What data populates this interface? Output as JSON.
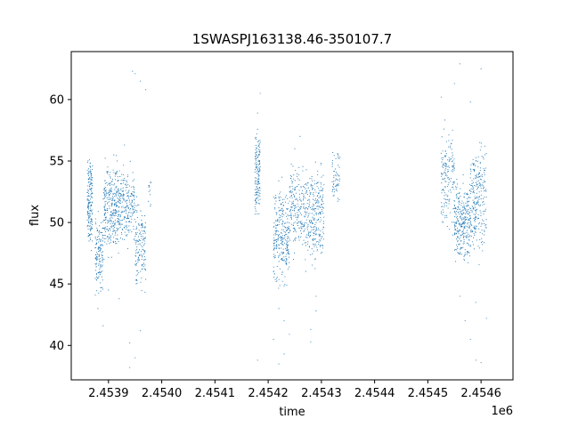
{
  "chart_data": {
    "type": "scatter",
    "title": "1SWASPJ163138.46-350107.7",
    "xlabel": "time",
    "ylabel": "flux",
    "x_offset_label": "1e6",
    "x_unit_multiplier": 1000000,
    "xlim": [
      2.45383,
      2.45466
    ],
    "ylim": [
      37.2,
      63.9
    ],
    "x_ticks": [
      2.4539,
      2.454,
      2.4541,
      2.4542,
      2.4543,
      2.4544,
      2.4545,
      2.4546
    ],
    "x_tick_labels": [
      "2.4539",
      "2.4540",
      "2.4541",
      "2.4542",
      "2.4543",
      "2.4544",
      "2.4545",
      "2.4546"
    ],
    "y_ticks": [
      40,
      45,
      50,
      55,
      60
    ],
    "y_tick_labels": [
      "40",
      "45",
      "50",
      "55",
      "60"
    ],
    "marker_color": "#1f77b4",
    "grid": false,
    "series": [
      {
        "clusters": [
          {
            "x": [
              2.45386,
              2.45387
            ],
            "y": [
              49.0,
              54.5
            ],
            "sd": 1.2,
            "n": 180
          },
          {
            "x": [
              2.453875,
              2.45389
            ],
            "y": [
              45.5,
              49.5
            ],
            "sd": 1.4,
            "n": 140
          },
          {
            "x": [
              2.45389,
              2.45392
            ],
            "y": [
              48.5,
              53.5
            ],
            "sd": 1.5,
            "n": 320
          },
          {
            "x": [
              2.45392,
              2.45395
            ],
            "y": [
              49.5,
              53.0
            ],
            "sd": 1.6,
            "n": 220
          },
          {
            "x": [
              2.45395,
              2.45397
            ],
            "y": [
              46.0,
              50.5
            ],
            "sd": 1.6,
            "n": 150
          },
          {
            "x": [
              2.453975,
              2.45398
            ],
            "y": [
              51.5,
              53.0
            ],
            "sd": 0.6,
            "n": 12
          },
          {
            "x": [
              2.454175,
              2.454185
            ],
            "y": [
              51.5,
              56.5
            ],
            "sd": 1.3,
            "n": 150
          },
          {
            "x": [
              2.45421,
              2.45424
            ],
            "y": [
              46.0,
              51.5
            ],
            "sd": 1.6,
            "n": 280
          },
          {
            "x": [
              2.45424,
              2.45427
            ],
            "y": [
              49.0,
              53.0
            ],
            "sd": 1.6,
            "n": 200
          },
          {
            "x": [
              2.45427,
              2.454305
            ],
            "y": [
              48.0,
              53.5
            ],
            "sd": 1.6,
            "n": 280
          },
          {
            "x": [
              2.45432,
              2.454335
            ],
            "y": [
              52.5,
              55.5
            ],
            "sd": 1.0,
            "n": 60
          },
          {
            "x": [
              2.454525,
              2.45455
            ],
            "y": [
              50.5,
              56.0
            ],
            "sd": 1.5,
            "n": 160
          },
          {
            "x": [
              2.45455,
              2.45458
            ],
            "y": [
              48.0,
              52.0
            ],
            "sd": 1.7,
            "n": 300
          },
          {
            "x": [
              2.45458,
              2.45461
            ],
            "y": [
              49.0,
              55.0
            ],
            "sd": 1.8,
            "n": 260
          }
        ],
        "outliers": [
          [
            2.45388,
            43.0
          ],
          [
            2.45389,
            41.6
          ],
          [
            2.45391,
            55.5
          ],
          [
            2.45393,
            56.3
          ],
          [
            2.45394,
            38.2
          ],
          [
            2.453945,
            62.3
          ],
          [
            2.45395,
            62.1
          ],
          [
            2.45394,
            40.2
          ],
          [
            2.45396,
            61.5
          ],
          [
            2.45396,
            41.2
          ],
          [
            2.45395,
            39.0
          ],
          [
            2.45392,
            43.8
          ],
          [
            2.45397,
            60.8
          ],
          [
            2.4539,
            44.5
          ],
          [
            2.454185,
            60.5
          ],
          [
            2.45418,
            58.9
          ],
          [
            2.45418,
            38.8
          ],
          [
            2.45422,
            43.0
          ],
          [
            2.45421,
            40.5
          ],
          [
            2.45422,
            38.5
          ],
          [
            2.45423,
            39.3
          ],
          [
            2.45424,
            40.9
          ],
          [
            2.45425,
            56.0
          ],
          [
            2.45426,
            57.0
          ],
          [
            2.45428,
            41.3
          ],
          [
            2.45428,
            40.3
          ],
          [
            2.45429,
            44.0
          ],
          [
            2.45429,
            42.8
          ],
          [
            2.45423,
            42.0
          ],
          [
            2.45455,
            61.3
          ],
          [
            2.45456,
            62.9
          ],
          [
            2.45458,
            59.8
          ],
          [
            2.45458,
            40.5
          ],
          [
            2.45459,
            38.8
          ],
          [
            2.4546,
            62.5
          ],
          [
            2.4546,
            38.6
          ],
          [
            2.45456,
            44.0
          ],
          [
            2.45457,
            42.0
          ],
          [
            2.45459,
            43.5
          ],
          [
            2.45453,
            57.6
          ],
          [
            2.45461,
            42.2
          ],
          [
            2.454525,
            60.2
          ]
        ]
      }
    ]
  }
}
